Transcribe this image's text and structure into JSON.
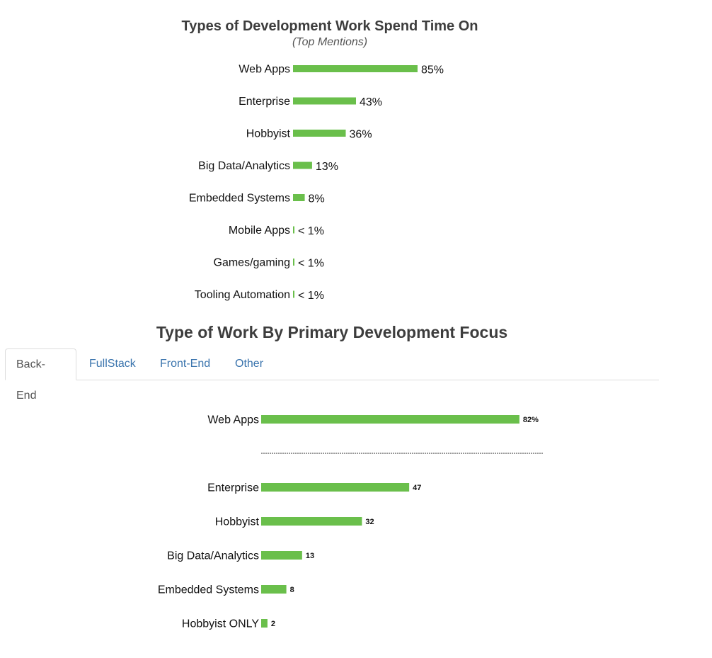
{
  "chart1_header": {
    "title": "Types of Development Work Spend Time On",
    "subtitle": "(Top Mentions)"
  },
  "chart2_header": {
    "title": "Type of Work By Primary Development Focus"
  },
  "tabs": [
    {
      "label": "Back-End",
      "active": true
    },
    {
      "label": "FullStack",
      "active": false
    },
    {
      "label": "Front-End",
      "active": false
    },
    {
      "label": "Other",
      "active": false
    }
  ],
  "colors": {
    "bar": "#6abf4b",
    "tab_link": "#3a74ad",
    "title": "#3d3d3d"
  },
  "chart_data": [
    {
      "type": "bar",
      "orientation": "horizontal",
      "title": "Types of Development Work Spend Time On",
      "subtitle": "(Top Mentions)",
      "categories": [
        "Web Apps",
        "Enterprise",
        "Hobbyist",
        "Big Data/Analytics",
        "Embedded Systems",
        "Mobile Apps",
        "Games/gaming",
        "Tooling Automation"
      ],
      "values": [
        85,
        43,
        36,
        13,
        8,
        0.5,
        0.5,
        0.5
      ],
      "value_labels": [
        "85%",
        "43%",
        "36%",
        "13%",
        "8%",
        "< 1%",
        "< 1%",
        "< 1%"
      ],
      "xlim": [
        0,
        100
      ],
      "grid": false
    },
    {
      "type": "bar",
      "orientation": "horizontal",
      "title": "Type of Work By Primary Development Focus",
      "selected_tab": "Back-End",
      "categories": [
        "Web Apps",
        "Enterprise",
        "Hobbyist",
        "Big Data/Analytics",
        "Embedded Systems",
        "Hobbyist ONLY"
      ],
      "values": [
        82,
        47,
        32,
        13,
        8,
        2
      ],
      "value_labels": [
        "82%",
        "47",
        "32",
        "13",
        "8",
        "2"
      ],
      "xlim": [
        0,
        100
      ],
      "separator_after_index": 0,
      "grid": false
    }
  ]
}
